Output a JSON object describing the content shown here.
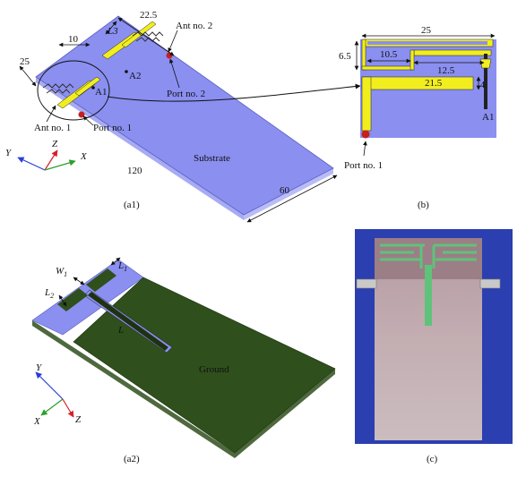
{
  "colors": {
    "substrate": "#8a8ff0",
    "antenna": "#f2ee1e",
    "ground": "#2f4f1c",
    "port": "#c81e1e",
    "axis_y": "#2a3fd8",
    "axis_z": "#d8202a",
    "axis_x": "#2aa02a",
    "photo_bg": "#2b3fb0"
  },
  "panel_a1": {
    "caption": "(a1)",
    "dim_top_left": "10",
    "dim_left": "25",
    "dim_l3": "L3",
    "dim_top_right": "22.5",
    "dim_length": "120",
    "dim_width": "60",
    "ant1_label": "Ant no. 1",
    "ant2_label": "Ant no. 2",
    "port1_label": "Port no. 1",
    "port2_label": "Port no. 2",
    "a1_label": "A1",
    "a2_label": "A2",
    "substrate_label": "Substrate",
    "axis_y": "Y",
    "axis_z": "Z",
    "axis_x": "X"
  },
  "panel_b": {
    "caption": "(b)",
    "dim_width": "25",
    "dim_height": "6.5",
    "dim_inner": "10.5",
    "dim_slot": "12.5",
    "dim_feed": "21.5",
    "dim_gap": "4",
    "a1_label": "A1",
    "port_label": "Port no. 1"
  },
  "panel_a2": {
    "caption": "(a2)",
    "w1_label": "W",
    "w1_sub": "1",
    "l1_label": "L",
    "l1_sub": "1",
    "l2_label": "L",
    "l2_sub": "2",
    "l_label": "L",
    "ground_label": "Ground",
    "axis_y": "Y",
    "axis_x": "X",
    "axis_z": "Z"
  },
  "panel_c": {
    "caption": "(c)"
  }
}
